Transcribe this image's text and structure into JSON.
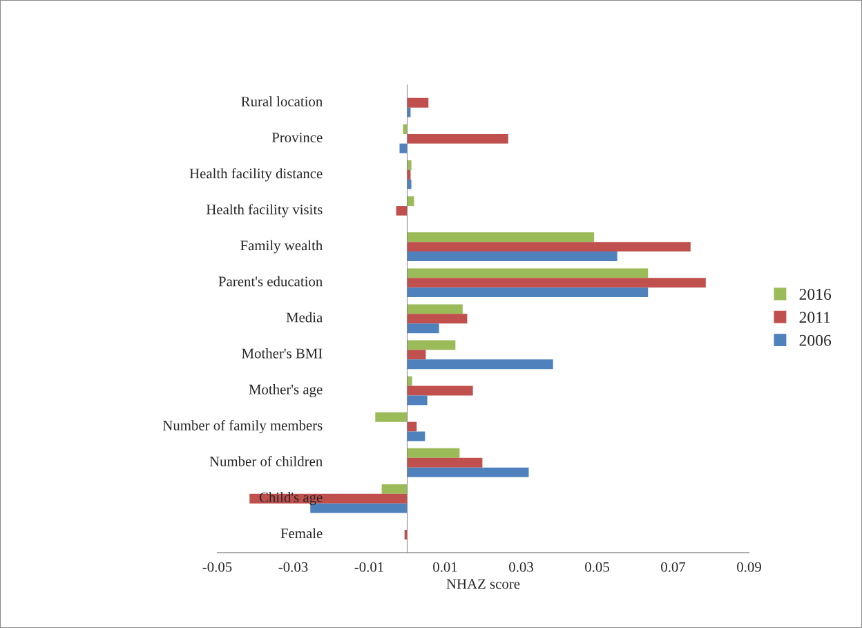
{
  "chart_data": {
    "type": "bar",
    "orientation": "horizontal",
    "xlabel": "NHAZ score",
    "categories": [
      "Rural location",
      "Province",
      "Health facility distance",
      "Health facility visits",
      "Family wealth",
      "Parent's education",
      "Media",
      "Mother's BMI",
      "Mother's age",
      "Number of family members",
      "Number of children",
      "Child's age",
      "Female"
    ],
    "series": [
      {
        "name": "2016",
        "color": "#9bbb59",
        "values": [
          null,
          -0.0011,
          0.0011,
          0.0018,
          0.0492,
          0.0634,
          0.0146,
          0.0127,
          0.0013,
          -0.0084,
          0.0138,
          -0.0067,
          null
        ]
      },
      {
        "name": "2011",
        "color": "#c0504d",
        "values": [
          0.0056,
          0.0266,
          0.0009,
          -0.0029,
          0.0746,
          0.0786,
          0.0158,
          0.0049,
          0.0173,
          0.0025,
          0.0198,
          -0.0415,
          -0.0007
        ]
      },
      {
        "name": "2006",
        "color": "#4f81bd",
        "values": [
          0.0009,
          -0.002,
          0.0011,
          null,
          0.0553,
          0.0634,
          0.0084,
          0.0384,
          0.0053,
          0.0047,
          0.032,
          -0.0255,
          null
        ]
      }
    ],
    "xlim": [
      -0.05,
      0.09
    ],
    "xticks": [
      -0.05,
      -0.03,
      -0.01,
      0.01,
      0.03,
      0.05,
      0.07,
      0.09
    ],
    "grid": false,
    "legend": "right"
  }
}
